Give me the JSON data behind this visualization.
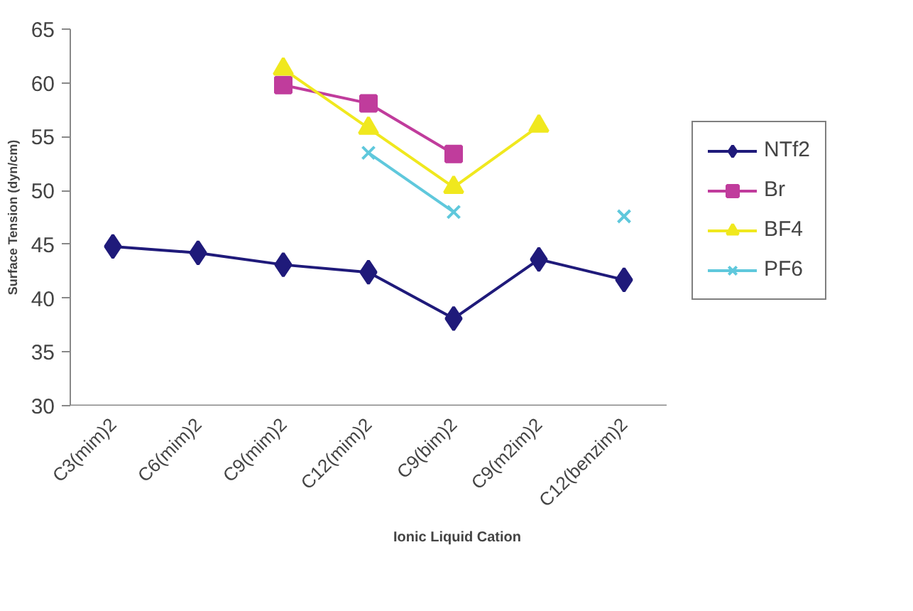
{
  "chart_data": {
    "type": "line",
    "xlabel": "Ionic Liquid Cation",
    "ylabel": "Surface Tension (dyn/cm)",
    "categories": [
      "C3(mim)2",
      "C6(mim)2",
      "C9(mim)2",
      "C12(mim)2",
      "C9(bim)2",
      "C9(m2im)2",
      "C12(benzim)2"
    ],
    "series": [
      {
        "name": "NTf2",
        "color": "#1f1a7a",
        "marker": "diamond",
        "values": [
          44.8,
          44.2,
          43.1,
          42.4,
          38.1,
          43.6,
          41.7
        ]
      },
      {
        "name": "Br",
        "color": "#c03c9c",
        "marker": "square",
        "values": [
          null,
          null,
          59.8,
          58.1,
          53.4,
          null,
          null
        ]
      },
      {
        "name": "BF4",
        "color": "#f0e81e",
        "marker": "triangle",
        "values": [
          null,
          null,
          61.3,
          55.8,
          50.3,
          56.0,
          null
        ]
      },
      {
        "name": "PF6",
        "color": "#5fc8dc",
        "marker": "cross",
        "values": [
          null,
          null,
          null,
          53.5,
          48.0,
          null,
          47.6
        ]
      }
    ],
    "ylim": [
      30,
      65
    ],
    "yticks": [
      30,
      35,
      40,
      45,
      50,
      55,
      60,
      65
    ],
    "grid": false,
    "legend": "right"
  }
}
